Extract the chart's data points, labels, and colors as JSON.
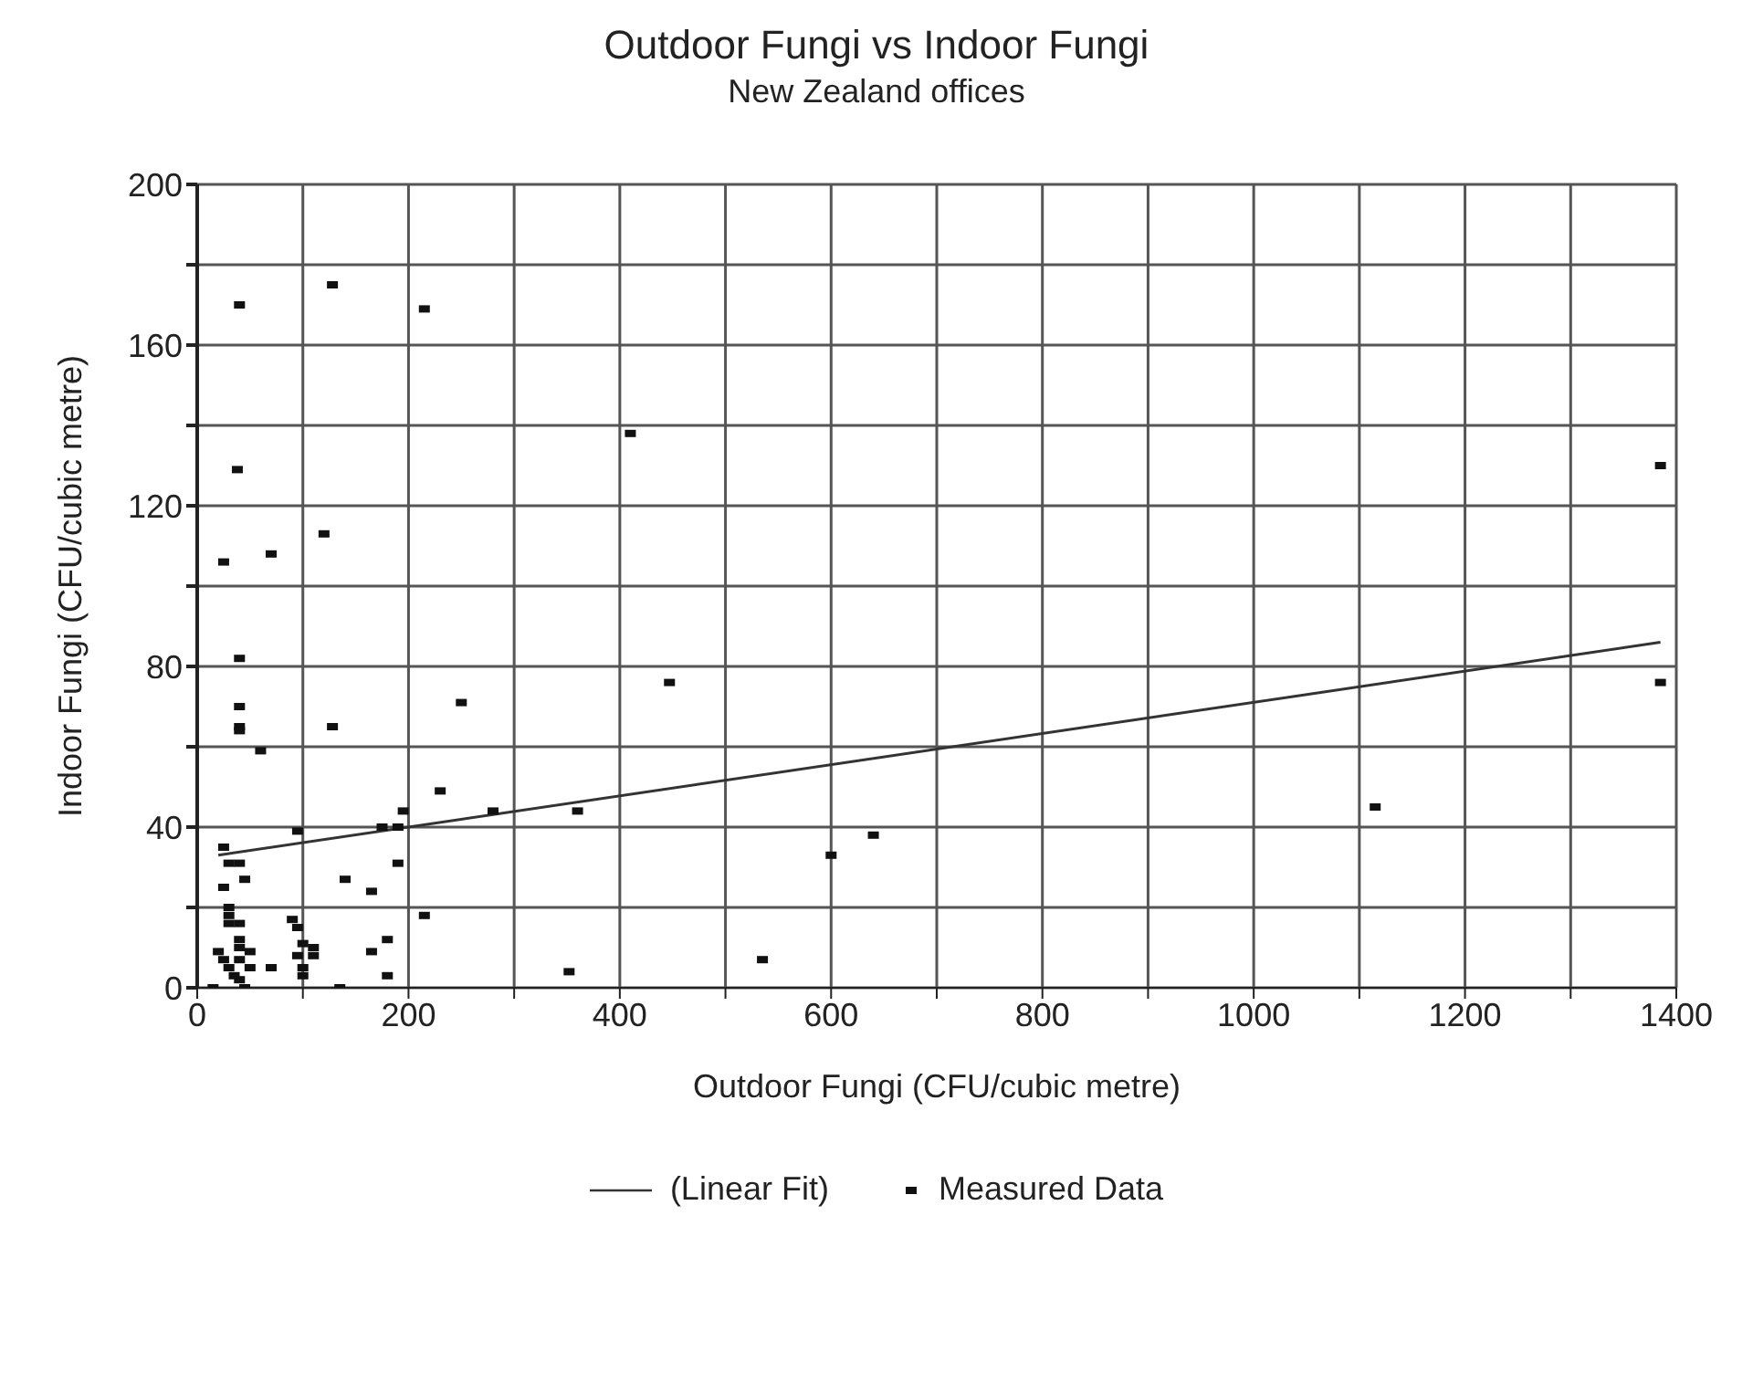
{
  "chart_data": {
    "type": "scatter",
    "title": "Outdoor Fungi vs Indoor Fungi",
    "subtitle": "New Zealand offices",
    "xlabel": "Outdoor Fungi (CFU/cubic metre)",
    "ylabel": "Indoor Fungi  (CFU/cubic metre)",
    "xlim": [
      0,
      1400
    ],
    "xticks": [
      0,
      {
        "value": 100,
        "label": null
      },
      200,
      {
        "value": 300,
        "label": null
      },
      400,
      {
        "value": 500,
        "label": null
      },
      600,
      {
        "value": 700,
        "label": null
      },
      800,
      {
        "value": 900,
        "label": null
      },
      1000,
      {
        "value": 1100,
        "label": null
      },
      1200,
      {
        "value": 1300,
        "label": null
      },
      1400
    ],
    "ylim": [
      0,
      200
    ],
    "yticks": [
      0,
      {
        "value": 20,
        "label": null
      },
      40,
      {
        "value": 60,
        "label": null
      },
      80,
      {
        "value": 100,
        "label": null
      },
      120,
      {
        "value": 140,
        "label": null
      },
      160,
      {
        "value": 180,
        "label": null
      },
      200
    ],
    "grid": true,
    "legend": "bottom",
    "series": [
      {
        "name": "(Linear Fit)",
        "type": "line",
        "marker": "none",
        "line_style": "solid",
        "color": "#333333",
        "x": [
          20,
          1385
        ],
        "values": [
          33,
          86
        ]
      },
      {
        "name": "Measured Data",
        "marker": "square",
        "color": "#111111",
        "x": [
          40,
          128,
          215,
          410,
          1385,
          38,
          120,
          70,
          25,
          40,
          40,
          40,
          40,
          128,
          60,
          250,
          447,
          1385,
          1115,
          640,
          600,
          535,
          352,
          360,
          280,
          230,
          195,
          190,
          175,
          95,
          25,
          30,
          40,
          45,
          140,
          190,
          215,
          165,
          165,
          180,
          180,
          135,
          25,
          30,
          30,
          30,
          40,
          40,
          40,
          20,
          25,
          30,
          35,
          40,
          45,
          15,
          50,
          50,
          90,
          95,
          100,
          95,
          100,
          100,
          110,
          110,
          70,
          40
        ],
        "values": [
          170,
          175,
          169,
          138,
          130,
          129,
          113,
          108,
          106,
          82,
          70,
          65,
          64,
          65,
          59,
          71,
          76,
          76,
          45,
          38,
          33,
          7,
          4,
          44,
          44,
          49,
          44,
          40,
          40,
          39,
          35,
          31,
          31,
          27,
          27,
          31,
          18,
          24,
          9,
          12,
          3,
          0,
          25,
          20,
          18,
          16,
          16,
          12,
          10,
          9,
          7,
          5,
          3,
          2,
          0,
          0,
          9,
          5,
          17,
          15,
          11,
          8,
          5,
          3,
          8,
          10,
          5,
          7
        ]
      }
    ]
  }
}
